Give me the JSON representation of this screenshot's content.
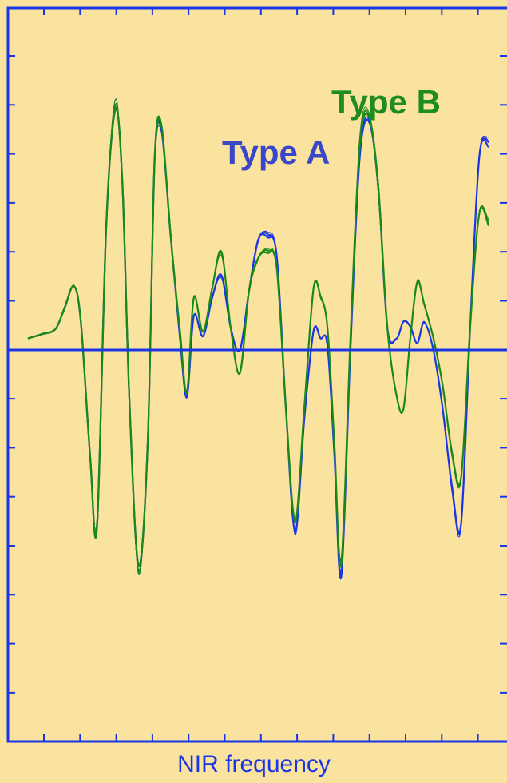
{
  "chart_data": {
    "type": "line",
    "title": "",
    "xlabel": "NIR frequency",
    "ylabel": "",
    "ylim": [
      -1.0,
      1.2
    ],
    "x": [
      0.0,
      0.03,
      0.06,
      0.08,
      0.1,
      0.115,
      0.135,
      0.15,
      0.17,
      0.19,
      0.205,
      0.22,
      0.24,
      0.26,
      0.275,
      0.29,
      0.31,
      0.33,
      0.345,
      0.36,
      0.38,
      0.4,
      0.42,
      0.44,
      0.46,
      0.48,
      0.5,
      0.52,
      0.54,
      0.56,
      0.58,
      0.6,
      0.62,
      0.635,
      0.65,
      0.665,
      0.68,
      0.7,
      0.72,
      0.74,
      0.76,
      0.78,
      0.8,
      0.815,
      0.83,
      0.845,
      0.86,
      0.88,
      0.9,
      0.92,
      0.94,
      0.96,
      0.98,
      1.0
    ],
    "series": [
      {
        "name": "Type A",
        "color": "#1a35e6",
        "label_color": "#3a48c8",
        "values": [
          0.05,
          0.07,
          0.09,
          0.18,
          0.28,
          0.12,
          -0.45,
          -0.75,
          0.55,
          1.05,
          0.7,
          -0.2,
          -0.96,
          -0.4,
          0.8,
          0.96,
          0.5,
          0.05,
          -0.2,
          0.15,
          0.06,
          0.22,
          0.32,
          0.1,
          0.0,
          0.25,
          0.48,
          0.5,
          0.4,
          -0.25,
          -0.8,
          -0.3,
          0.08,
          0.05,
          0.02,
          -0.45,
          -0.95,
          0.0,
          0.85,
          0.98,
          0.7,
          0.1,
          0.05,
          0.12,
          0.1,
          0.03,
          0.12,
          0.0,
          -0.25,
          -0.6,
          -0.75,
          0.1,
          0.85,
          0.9
        ]
      },
      {
        "name": "Type B",
        "color": "#1a8a1a",
        "label_color": "#1e8c1e",
        "values": [
          0.05,
          0.07,
          0.09,
          0.18,
          0.28,
          0.12,
          -0.45,
          -0.75,
          0.55,
          1.05,
          0.7,
          -0.2,
          -0.96,
          -0.4,
          0.8,
          0.98,
          0.5,
          0.08,
          -0.18,
          0.23,
          0.08,
          0.26,
          0.42,
          0.1,
          -0.1,
          0.25,
          0.4,
          0.43,
          0.35,
          -0.25,
          -0.75,
          -0.25,
          0.26,
          0.23,
          0.1,
          -0.4,
          -0.9,
          0.05,
          0.9,
          1.0,
          0.7,
          0.1,
          -0.2,
          -0.25,
          0.05,
          0.3,
          0.2,
          0.05,
          -0.15,
          -0.45,
          -0.55,
          0.1,
          0.6,
          0.55
        ]
      }
    ],
    "ticks": {
      "x_count": 14,
      "y_count": 15
    },
    "grid": false,
    "zero_line": true
  }
}
